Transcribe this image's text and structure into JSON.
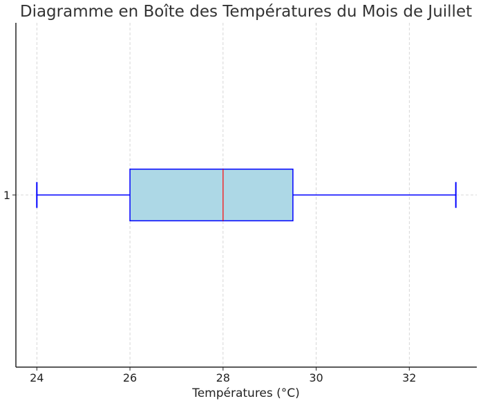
{
  "chart_data": {
    "type": "box",
    "orientation": "horizontal",
    "title": "Diagramme en Boîte des Températures du Mois de Juillet",
    "xlabel": "Températures (°C)",
    "ylabel": "",
    "categories": [
      "1"
    ],
    "xlim": [
      23.55,
      33.45
    ],
    "ylim": [
      0.5,
      1.5
    ],
    "x_ticks": [
      24,
      26,
      28,
      30,
      32
    ],
    "grid": true,
    "boxes": [
      {
        "label": "1",
        "min": 24,
        "q1": 26,
        "median": 28,
        "q3": 29.5,
        "max": 33
      }
    ],
    "colors": {
      "box_fill": "#add8e6",
      "box_edge": "#0000ff",
      "whisker": "#0000ff",
      "median": "#ff0000",
      "grid": "#cccccc",
      "axis": "#222222",
      "title": "#333333"
    }
  }
}
